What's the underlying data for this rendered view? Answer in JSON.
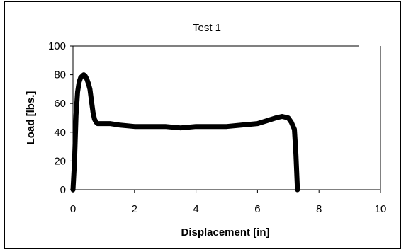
{
  "chart_data": {
    "type": "line",
    "title": "Test 1",
    "xlabel": "Displacement [in]",
    "ylabel": "Load [lbs.]",
    "xlim": [
      0,
      10
    ],
    "ylim": [
      0,
      100
    ],
    "xticks": [
      0,
      2,
      4,
      6,
      8,
      10
    ],
    "yticks": [
      0,
      20,
      40,
      60,
      80,
      100
    ],
    "grid": "horizontal-top-line-only",
    "legend": "none",
    "line_color": "#000000",
    "series": [
      {
        "x": [
          0.0,
          0.05,
          0.1,
          0.15,
          0.2,
          0.25,
          0.3,
          0.35,
          0.4,
          0.45,
          0.5,
          0.55,
          0.6,
          0.65,
          0.7,
          0.75,
          0.8,
          0.9,
          1.0,
          1.2,
          1.5,
          2.0,
          2.5,
          3.0,
          3.5,
          4.0,
          4.5,
          5.0,
          5.5,
          6.0,
          6.3,
          6.6,
          6.8,
          7.0,
          7.1,
          7.2,
          7.25,
          7.3
        ],
        "y": [
          0,
          20,
          52,
          68,
          75,
          78,
          79,
          80,
          79,
          77,
          74,
          70,
          62,
          54,
          49,
          47,
          46,
          46,
          46,
          46,
          45,
          44,
          44,
          44,
          43,
          44,
          44,
          44,
          45,
          46,
          48,
          50,
          51,
          50,
          47,
          42,
          25,
          0
        ]
      }
    ]
  }
}
